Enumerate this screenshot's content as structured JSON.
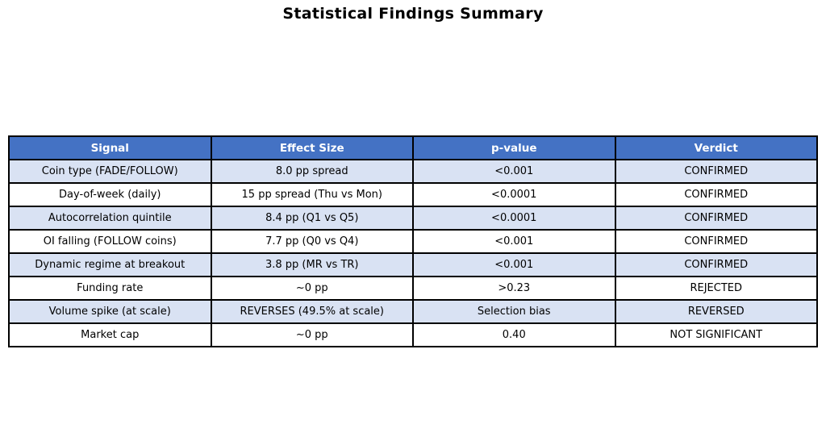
{
  "title": "Statistical Findings Summary",
  "colors": {
    "header_bg": "#4472C4",
    "header_text": "#FFFFFF",
    "row_alt_bg": "#D9E2F3",
    "row_bg": "#FFFFFF",
    "border": "#000000",
    "text": "#000000"
  },
  "chart_data": {
    "type": "table",
    "title": "Statistical Findings Summary",
    "columns": [
      "Signal",
      "Effect Size",
      "p-value",
      "Verdict"
    ],
    "rows": [
      [
        "Coin type (FADE/FOLLOW)",
        "8.0 pp spread",
        "<0.001",
        "CONFIRMED"
      ],
      [
        "Day-of-week (daily)",
        "15 pp spread (Thu vs Mon)",
        "<0.0001",
        "CONFIRMED"
      ],
      [
        "Autocorrelation quintile",
        "8.4 pp (Q1 vs Q5)",
        "<0.0001",
        "CONFIRMED"
      ],
      [
        "OI falling (FOLLOW coins)",
        "7.7 pp (Q0 vs Q4)",
        "<0.001",
        "CONFIRMED"
      ],
      [
        "Dynamic regime at breakout",
        "3.8 pp (MR vs TR)",
        "<0.001",
        "CONFIRMED"
      ],
      [
        "Funding rate",
        "~0 pp",
        ">0.23",
        "REJECTED"
      ],
      [
        "Volume spike (at scale)",
        "REVERSES (49.5% at scale)",
        "Selection bias",
        "REVERSED"
      ],
      [
        "Market cap",
        "~0 pp",
        "0.40",
        "NOT SIGNIFICANT"
      ]
    ],
    "layout": {
      "alternating_rows": true,
      "grid": true,
      "header_style": "bold-white-on-blue",
      "cell_alignment": "center"
    }
  }
}
